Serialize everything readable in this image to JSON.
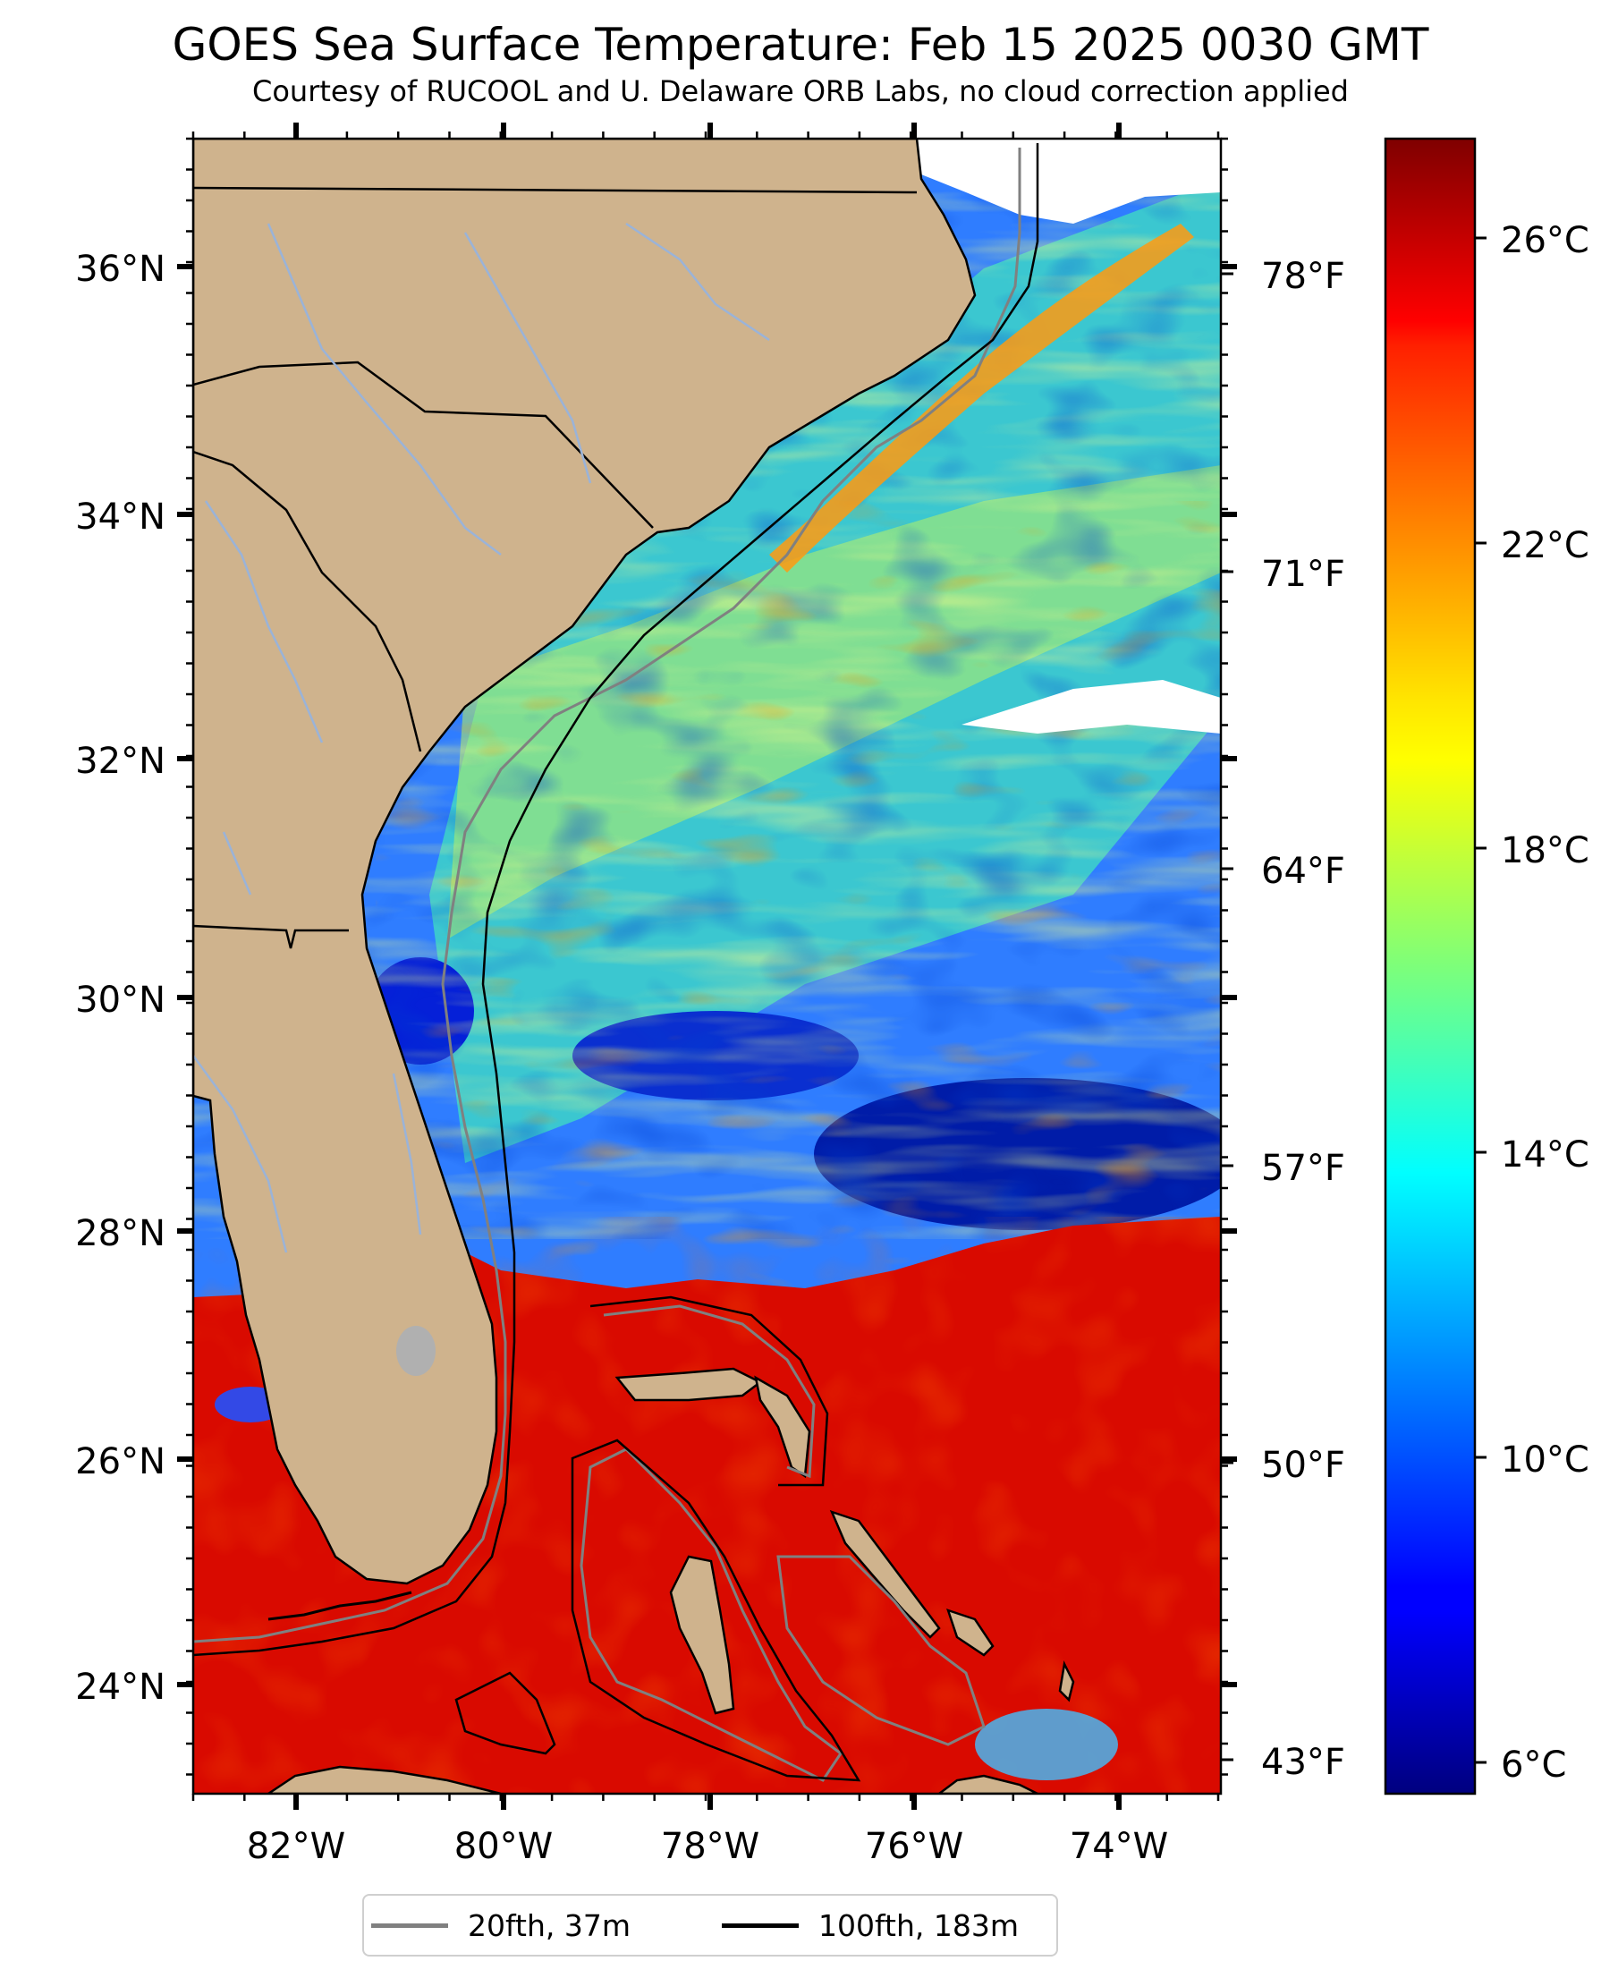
{
  "title": "GOES Sea Surface Temperature: Feb 15 2025 0030 GMT",
  "subtitle": "Courtesy of RUCOOL and U. Delaware ORB Labs, no cloud correction applied",
  "map": {
    "lon_range": [
      -83,
      -73
    ],
    "lat_range": [
      23.1,
      37
    ],
    "land_color": "#cfb38d",
    "river_color": "#9ab3d8",
    "lon_ticks": [
      "82°W",
      "80°W",
      "78°W",
      "76°W",
      "74°W"
    ],
    "lat_ticks": [
      "36°N",
      "34°N",
      "32°N",
      "30°N",
      "28°N",
      "26°N",
      "24°N"
    ],
    "fahrenheit_ticks": [
      "78°F",
      "71°F",
      "64°F",
      "57°F",
      "50°F",
      "43°F"
    ]
  },
  "colorbar": {
    "colormap": "jet",
    "range_c": [
      5.4,
      27.6
    ],
    "ticks": [
      "26°C",
      "22°C",
      "18°C",
      "14°C",
      "10°C",
      "6°C"
    ]
  },
  "legend": {
    "items": [
      {
        "label": "20fth, 37m",
        "color": "#808080"
      },
      {
        "label": "100fth, 183m",
        "color": "#000000"
      }
    ]
  }
}
